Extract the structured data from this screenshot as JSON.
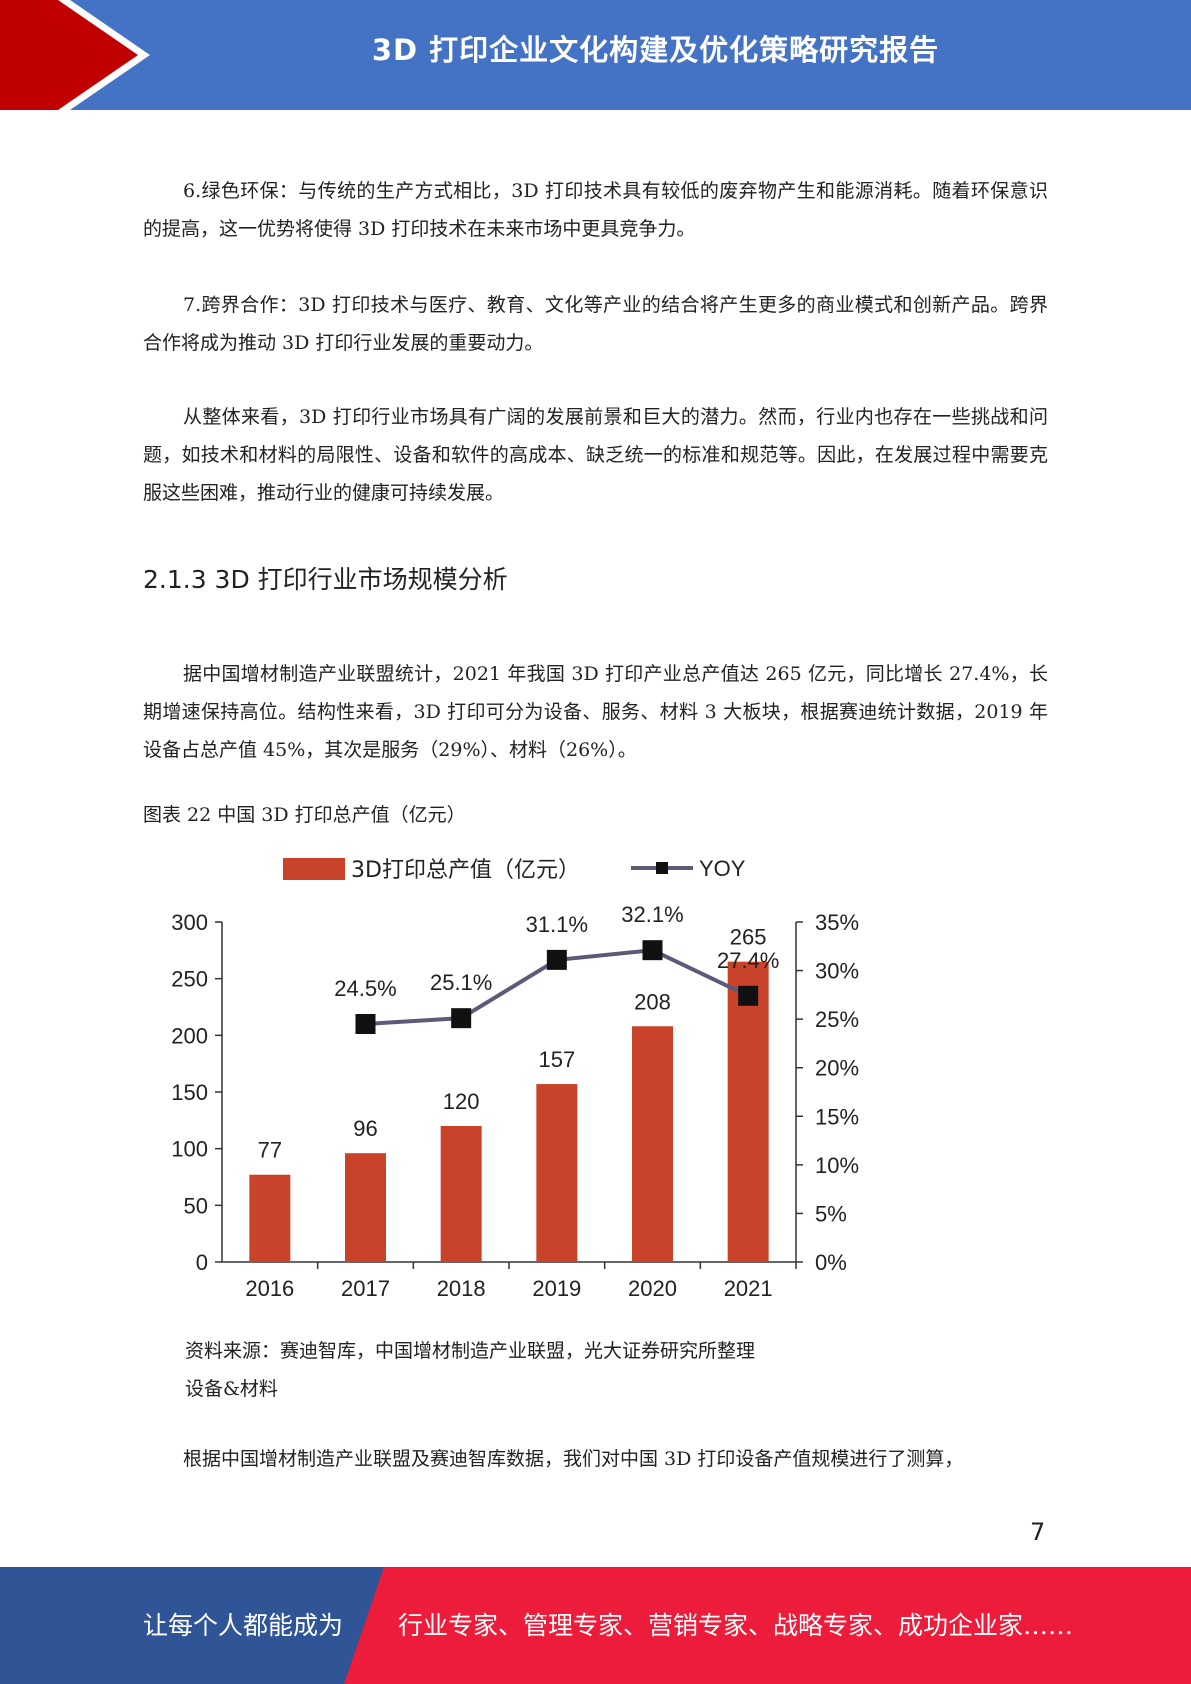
{
  "header": {
    "title": "3D 打印企业文化构建及优化策略研究报告"
  },
  "paragraphs": {
    "p1": "6.绿色环保：与传统的生产方式相比，3D 打印技术具有较低的废弃物产生和能源消耗。随着环保意识的提高，这一优势将使得 3D 打印技术在未来市场中更具竞争力。",
    "p2": "7.跨界合作：3D 打印技术与医疗、教育、文化等产业的结合将产生更多的商业模式和创新产品。跨界合作将成为推动 3D 打印行业发展的重要动力。",
    "p3": "从整体来看，3D 打印行业市场具有广阔的发展前景和巨大的潜力。然而，行业内也存在一些挑战和问题，如技术和材料的局限性、设备和软件的高成本、缺乏统一的标准和规范等。因此，在发展过程中需要克服这些困难，推动行业的健康可持续发展。",
    "p4": "据中国增材制造产业联盟统计，2021 年我国 3D 打印产业总产值达 265 亿元，同比增长 27.4%，长期增速保持高位。结构性来看，3D 打印可分为设备、服务、材料 3 大板块，根据赛迪统计数据，2019 年设备占总产值 45%，其次是服务（29%）、材料（26%）。",
    "p5": "根据中国增材制造产业联盟及赛迪智库数据，我们对中国 3D 打印设备产值规模进行了测算，"
  },
  "section_heading": "2.1.3 3D 打印行业市场规模分析",
  "figure_caption": "图表 22 中国 3D 打印总产值（亿元）",
  "source_note": "资料来源：赛迪智库，中国增材制造产业联盟，光大证券研究所整理",
  "sub_label": "设备&材料",
  "page_number": "7",
  "footer": {
    "left": "让每个人都能成为",
    "right": "行业专家、管理专家、营销专家、战略专家、成功企业家……"
  },
  "colors": {
    "header_blue": "#4472c4",
    "header_red": "#c00000",
    "footer_blue": "#2f5597",
    "footer_red": "#ed1c3a",
    "bar": "#c9432a",
    "line": "#5c5a78"
  },
  "chart_data": {
    "type": "bar",
    "categories": [
      "2016",
      "2017",
      "2018",
      "2019",
      "2020",
      "2021"
    ],
    "series": [
      {
        "name": "3D打印总产值（亿元）",
        "type": "bar",
        "axis": "left",
        "values": [
          77,
          96,
          120,
          157,
          208,
          265
        ]
      },
      {
        "name": "YOY",
        "type": "line",
        "axis": "right",
        "values": [
          null,
          24.5,
          25.1,
          31.1,
          32.1,
          27.4
        ]
      }
    ],
    "yoy_labels": [
      "",
      "24.5%",
      "25.1%",
      "31.1%",
      "32.1%",
      "27.4%"
    ],
    "left_ticks": [
      "0",
      "50",
      "100",
      "150",
      "200",
      "250",
      "300"
    ],
    "right_ticks": [
      "0%",
      "5%",
      "10%",
      "15%",
      "20%",
      "25%",
      "30%",
      "35%"
    ],
    "ylim_left": [
      0,
      300
    ],
    "ylim_right": [
      0,
      35
    ],
    "legend": "top",
    "grid": false
  }
}
